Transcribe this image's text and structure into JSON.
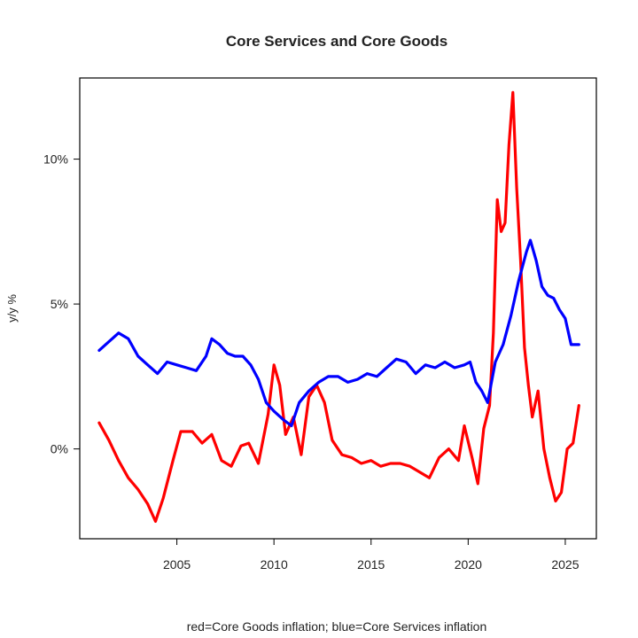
{
  "chart_data": {
    "type": "line",
    "title": "Core Services and Core Goods",
    "xlabel": "",
    "ylabel": "y/y %",
    "caption": "red=Core Goods inflation; blue=Core Services inflation",
    "xlim": [
      2000.0,
      2026.6
    ],
    "ylim": [
      -3.1,
      12.8
    ],
    "x_ticks": [
      2005,
      2010,
      2015,
      2020,
      2025
    ],
    "x_tick_labels": [
      "2005",
      "2010",
      "2015",
      "2020",
      "2025"
    ],
    "y_ticks": [
      0,
      5,
      10
    ],
    "y_tick_labels": [
      "0%",
      "5%",
      "10%"
    ],
    "grid": false,
    "series": [
      {
        "color": "#ff0000",
        "x": [
          2001.0,
          2001.5,
          2002.0,
          2002.5,
          2003.0,
          2003.5,
          2003.9,
          2004.3,
          2004.8,
          2005.2,
          2005.8,
          2006.3,
          2006.8,
          2007.3,
          2007.8,
          2008.3,
          2008.7,
          2009.2,
          2009.7,
          2010.0,
          2010.3,
          2010.6,
          2011.0,
          2011.4,
          2011.8,
          2012.2,
          2012.6,
          2013.0,
          2013.5,
          2014.0,
          2014.5,
          2015.0,
          2015.5,
          2016.0,
          2016.5,
          2017.0,
          2017.5,
          2018.0,
          2018.5,
          2019.0,
          2019.5,
          2019.8,
          2020.2,
          2020.5,
          2020.8,
          2021.1,
          2021.3,
          2021.5,
          2021.7,
          2021.9,
          2022.1,
          2022.3,
          2022.5,
          2022.7,
          2022.9,
          2023.1,
          2023.3,
          2023.6,
          2023.9,
          2024.2,
          2024.5,
          2024.8,
          2025.1,
          2025.4,
          2025.7
        ],
        "y": [
          0.9,
          0.3,
          -0.4,
          -1.0,
          -1.4,
          -1.9,
          -2.5,
          -1.7,
          -0.4,
          0.6,
          0.6,
          0.2,
          0.5,
          -0.4,
          -0.6,
          0.1,
          0.2,
          -0.5,
          1.2,
          2.9,
          2.2,
          0.5,
          1.1,
          -0.2,
          1.8,
          2.2,
          1.6,
          0.3,
          -0.2,
          -0.3,
          -0.5,
          -0.4,
          -0.6,
          -0.5,
          -0.5,
          -0.6,
          -0.8,
          -1.0,
          -0.3,
          0.0,
          -0.4,
          0.8,
          -0.3,
          -1.2,
          0.7,
          1.5,
          4.0,
          8.6,
          7.5,
          7.8,
          10.5,
          12.3,
          9.0,
          6.5,
          3.5,
          2.2,
          1.1,
          2.0,
          0.0,
          -1.0,
          -1.8,
          -1.5,
          0.0,
          0.2,
          1.5
        ]
      },
      {
        "color": "#0000ff",
        "x": [
          2001.0,
          2001.5,
          2002.0,
          2002.5,
          2003.0,
          2003.5,
          2004.0,
          2004.5,
          2005.0,
          2005.5,
          2006.0,
          2006.5,
          2006.8,
          2007.2,
          2007.6,
          2008.0,
          2008.4,
          2008.8,
          2009.2,
          2009.6,
          2010.0,
          2010.5,
          2010.9,
          2011.3,
          2011.8,
          2012.3,
          2012.8,
          2013.3,
          2013.8,
          2014.3,
          2014.8,
          2015.3,
          2015.8,
          2016.3,
          2016.8,
          2017.3,
          2017.8,
          2018.3,
          2018.8,
          2019.3,
          2019.8,
          2020.1,
          2020.4,
          2020.7,
          2021.0,
          2021.4,
          2021.8,
          2022.2,
          2022.6,
          2023.0,
          2023.2,
          2023.5,
          2023.8,
          2024.1,
          2024.4,
          2024.7,
          2025.0,
          2025.3,
          2025.7
        ],
        "y": [
          3.4,
          3.7,
          4.0,
          3.8,
          3.2,
          2.9,
          2.6,
          3.0,
          2.9,
          2.8,
          2.7,
          3.2,
          3.8,
          3.6,
          3.3,
          3.2,
          3.2,
          2.9,
          2.4,
          1.6,
          1.3,
          1.0,
          0.8,
          1.6,
          2.0,
          2.3,
          2.5,
          2.5,
          2.3,
          2.4,
          2.6,
          2.5,
          2.8,
          3.1,
          3.0,
          2.6,
          2.9,
          2.8,
          3.0,
          2.8,
          2.9,
          3.0,
          2.3,
          2.0,
          1.6,
          3.0,
          3.6,
          4.6,
          5.8,
          6.8,
          7.2,
          6.5,
          5.6,
          5.3,
          5.2,
          4.8,
          4.5,
          3.6,
          3.6
        ]
      }
    ]
  }
}
